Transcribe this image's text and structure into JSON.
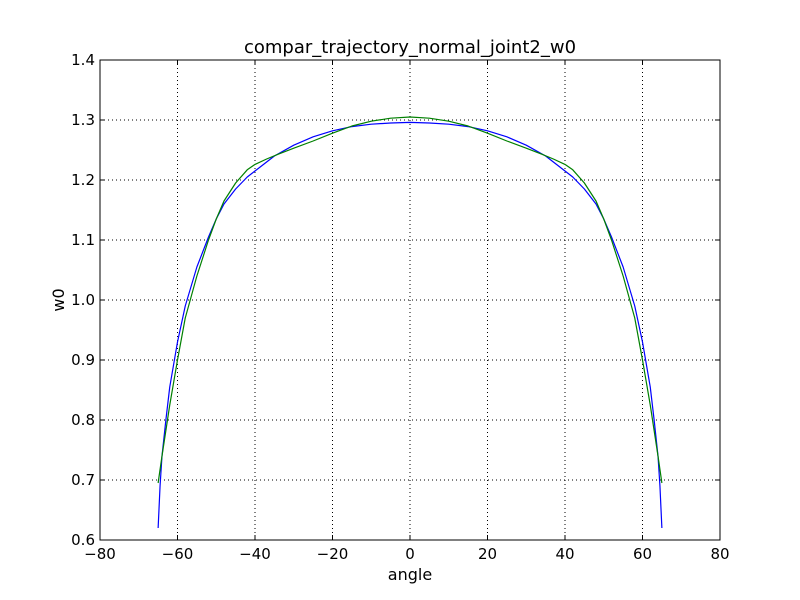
{
  "chart_data": {
    "type": "line",
    "title": "compar_trajectory_normal_joint2_w0",
    "xlabel": "angle",
    "ylabel": "w0",
    "xlim": [
      -80,
      80
    ],
    "ylim": [
      0.6,
      1.4
    ],
    "xticks": [
      -80,
      -60,
      -40,
      -20,
      0,
      20,
      40,
      60,
      80
    ],
    "xtick_labels": [
      "−80",
      "−60",
      "−40",
      "−20",
      "0",
      "20",
      "40",
      "60",
      "80"
    ],
    "yticks": [
      0.6,
      0.7,
      0.8,
      0.9,
      1.0,
      1.1,
      1.2,
      1.3,
      1.4
    ],
    "ytick_labels": [
      "0.6",
      "0.7",
      "0.8",
      "0.9",
      "1.0",
      "1.1",
      "1.2",
      "1.3",
      "1.4"
    ],
    "grid": true,
    "series": [
      {
        "color": "#0000ff",
        "x": [
          -65,
          -64.5,
          -64,
          -63,
          -62,
          -60,
          -58,
          -55,
          -52,
          -50,
          -48,
          -45,
          -42,
          -40,
          -35,
          -30,
          -25,
          -20,
          -15,
          -10,
          -5,
          0,
          5,
          10,
          15,
          20,
          25,
          30,
          35,
          40,
          42,
          45,
          48,
          50,
          52,
          55,
          58,
          60,
          62,
          63,
          64,
          64.5,
          65
        ],
        "y": [
          0.62,
          0.69,
          0.74,
          0.8,
          0.855,
          0.93,
          0.99,
          1.055,
          1.105,
          1.135,
          1.16,
          1.185,
          1.205,
          1.215,
          1.24,
          1.258,
          1.272,
          1.282,
          1.289,
          1.293,
          1.295,
          1.296,
          1.295,
          1.293,
          1.289,
          1.282,
          1.272,
          1.258,
          1.24,
          1.215,
          1.205,
          1.185,
          1.16,
          1.135,
          1.105,
          1.055,
          0.99,
          0.93,
          0.855,
          0.8,
          0.74,
          0.69,
          0.62
        ]
      },
      {
        "color": "#008000",
        "x": [
          -65,
          -64,
          -62,
          -60,
          -58,
          -55,
          -52,
          -50,
          -48,
          -45,
          -42,
          -40,
          -37,
          -34,
          -30,
          -25,
          -20,
          -15,
          -10,
          -5,
          0,
          5,
          10,
          15,
          20,
          25,
          30,
          34,
          37,
          40,
          42,
          45,
          48,
          50,
          52,
          55,
          58,
          60,
          62,
          64,
          65
        ],
        "y": [
          0.695,
          0.74,
          0.825,
          0.9,
          0.97,
          1.04,
          1.1,
          1.135,
          1.165,
          1.195,
          1.217,
          1.226,
          1.235,
          1.243,
          1.253,
          1.265,
          1.278,
          1.29,
          1.298,
          1.303,
          1.305,
          1.303,
          1.298,
          1.29,
          1.278,
          1.265,
          1.253,
          1.243,
          1.235,
          1.226,
          1.217,
          1.195,
          1.165,
          1.135,
          1.1,
          1.04,
          0.97,
          0.9,
          0.825,
          0.74,
          0.695
        ]
      }
    ]
  }
}
